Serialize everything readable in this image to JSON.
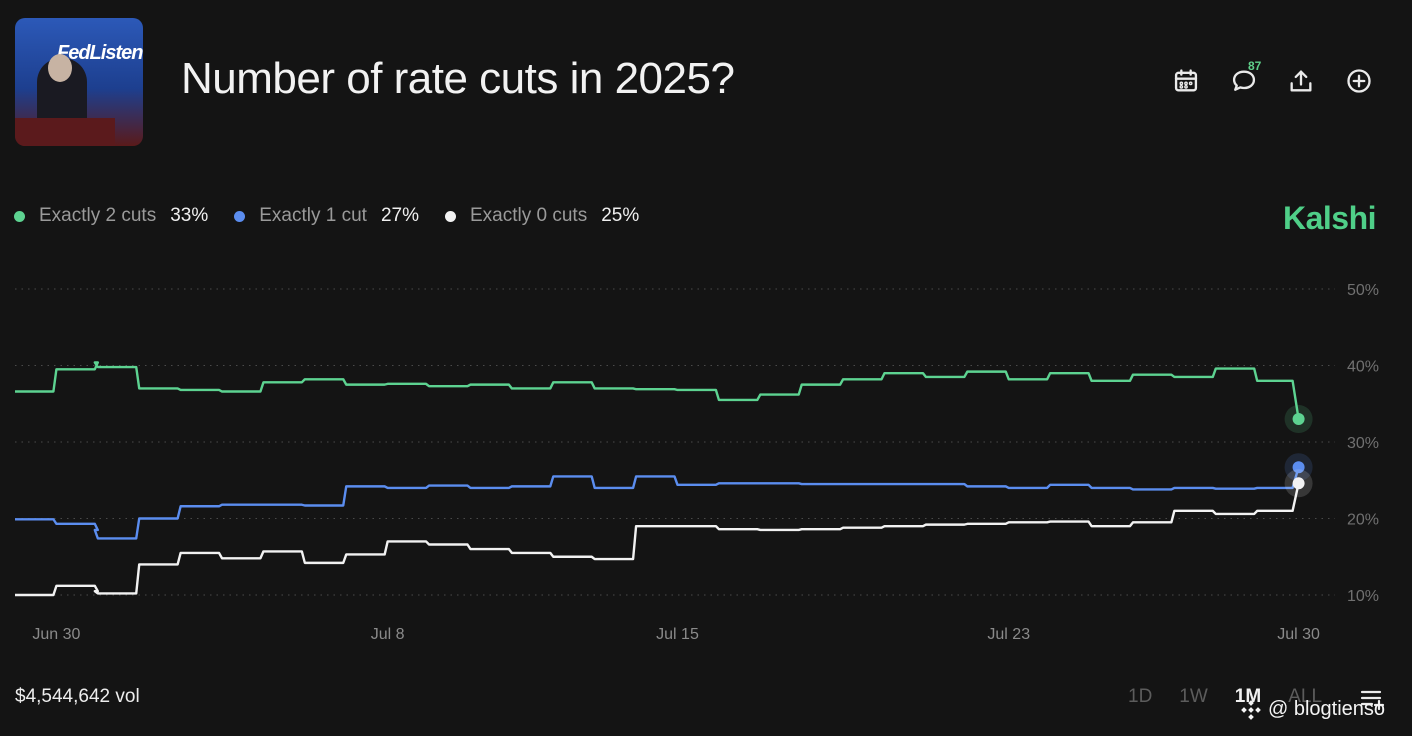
{
  "header": {
    "title": "Number of rate cuts in 2025?",
    "thumbnail_text": "FedListen",
    "comment_count": "87",
    "tools": [
      "calendar-icon",
      "comment-icon",
      "share-icon",
      "add-icon"
    ]
  },
  "legend": [
    {
      "name": "Exactly 2 cuts",
      "value": "33%",
      "color": "#5dd391"
    },
    {
      "name": "Exactly 1 cut",
      "value": "27%",
      "color": "#5b8def"
    },
    {
      "name": "Exactly 0 cuts",
      "value": "25%",
      "color": "#f2f2f2"
    }
  ],
  "brand": "Kalshi",
  "chart_data": {
    "type": "line",
    "x_tick_labels": [
      "Jun 30",
      "Jul 8",
      "Jul 15",
      "Jul 23",
      "Jul 30"
    ],
    "y_tick_labels": [
      "50%",
      "40%",
      "30%",
      "20%",
      "10%"
    ],
    "ylim": [
      10,
      50
    ],
    "xlim": [
      "Jun 29",
      "Jul 31"
    ],
    "grid": true,
    "y_axis_side": "right",
    "legend_position": "top-left",
    "series": [
      {
        "name": "Exactly 2 cuts",
        "color": "#5dd391",
        "points": [
          [
            "Jun 29",
            36.6
          ],
          [
            "Jun 30",
            39.5
          ],
          [
            "Jun 31",
            40.4
          ],
          [
            "Jul 1",
            39.8
          ],
          [
            "Jul 2",
            37.0
          ],
          [
            "Jul 3",
            36.8
          ],
          [
            "Jul 4",
            36.6
          ],
          [
            "Jul 5",
            37.8
          ],
          [
            "Jul 6",
            38.2
          ],
          [
            "Jul 7",
            37.5
          ],
          [
            "Jul 8",
            37.6
          ],
          [
            "Jul 9",
            37.3
          ],
          [
            "Jul 10",
            37.5
          ],
          [
            "Jul 11",
            37.0
          ],
          [
            "Jul 12",
            37.8
          ],
          [
            "Jul 13",
            37.0
          ],
          [
            "Jul 14",
            36.9
          ],
          [
            "Jul 15",
            36.8
          ],
          [
            "Jul 16",
            35.5
          ],
          [
            "Jul 17",
            36.2
          ],
          [
            "Jul 18",
            37.5
          ],
          [
            "Jul 19",
            38.2
          ],
          [
            "Jul 20",
            39.0
          ],
          [
            "Jul 21",
            38.5
          ],
          [
            "Jul 22",
            39.2
          ],
          [
            "Jul 23",
            38.2
          ],
          [
            "Jul 24",
            39.0
          ],
          [
            "Jul 25",
            38.0
          ],
          [
            "Jul 26",
            38.8
          ],
          [
            "Jul 27",
            38.5
          ],
          [
            "Jul 28",
            39.6
          ],
          [
            "Jul 29",
            38.0
          ],
          [
            "Jul 30",
            33.0
          ]
        ]
      },
      {
        "name": "Exactly 1 cut",
        "color": "#5b8def",
        "points": [
          [
            "Jun 29",
            19.9
          ],
          [
            "Jun 30",
            19.3
          ],
          [
            "Jun 31",
            18.5
          ],
          [
            "Jul 1",
            17.4
          ],
          [
            "Jul 2",
            20.0
          ],
          [
            "Jul 3",
            21.6
          ],
          [
            "Jul 4",
            21.8
          ],
          [
            "Jul 5",
            21.8
          ],
          [
            "Jul 6",
            21.7
          ],
          [
            "Jul 7",
            24.2
          ],
          [
            "Jul 8",
            24.0
          ],
          [
            "Jul 9",
            24.3
          ],
          [
            "Jul 10",
            24.0
          ],
          [
            "Jul 11",
            24.2
          ],
          [
            "Jul 12",
            25.5
          ],
          [
            "Jul 13",
            24.0
          ],
          [
            "Jul 14",
            25.5
          ],
          [
            "Jul 15",
            24.4
          ],
          [
            "Jul 16",
            24.6
          ],
          [
            "Jul 17",
            24.6
          ],
          [
            "Jul 18",
            24.5
          ],
          [
            "Jul 19",
            24.5
          ],
          [
            "Jul 20",
            24.5
          ],
          [
            "Jul 21",
            24.5
          ],
          [
            "Jul 22",
            24.2
          ],
          [
            "Jul 23",
            24.0
          ],
          [
            "Jul 24",
            24.4
          ],
          [
            "Jul 25",
            24.0
          ],
          [
            "Jul 26",
            23.8
          ],
          [
            "Jul 27",
            24.0
          ],
          [
            "Jul 28",
            23.9
          ],
          [
            "Jul 29",
            24.0
          ],
          [
            "Jul 30",
            26.7
          ]
        ]
      },
      {
        "name": "Exactly 0 cuts",
        "color": "#f2f2f2",
        "points": [
          [
            "Jun 29",
            10.0
          ],
          [
            "Jun 30",
            11.2
          ],
          [
            "Jun 31",
            10.5
          ],
          [
            "Jul 1",
            10.2
          ],
          [
            "Jul 2",
            14.0
          ],
          [
            "Jul 3",
            15.5
          ],
          [
            "Jul 4",
            14.8
          ],
          [
            "Jul 5",
            15.7
          ],
          [
            "Jul 6",
            14.2
          ],
          [
            "Jul 7",
            15.3
          ],
          [
            "Jul 8",
            17.0
          ],
          [
            "Jul 9",
            16.6
          ],
          [
            "Jul 10",
            16.0
          ],
          [
            "Jul 11",
            15.5
          ],
          [
            "Jul 12",
            15.0
          ],
          [
            "Jul 13",
            14.7
          ],
          [
            "Jul 14",
            19.0
          ],
          [
            "Jul 15",
            19.0
          ],
          [
            "Jul 16",
            18.6
          ],
          [
            "Jul 17",
            18.5
          ],
          [
            "Jul 18",
            18.6
          ],
          [
            "Jul 19",
            18.8
          ],
          [
            "Jul 20",
            19.0
          ],
          [
            "Jul 21",
            19.2
          ],
          [
            "Jul 22",
            19.3
          ],
          [
            "Jul 23",
            19.5
          ],
          [
            "Jul 24",
            19.6
          ],
          [
            "Jul 25",
            19.0
          ],
          [
            "Jul 26",
            19.5
          ],
          [
            "Jul 27",
            21.0
          ],
          [
            "Jul 28",
            20.6
          ],
          [
            "Jul 29",
            21.0
          ],
          [
            "Jul 30",
            24.6
          ]
        ]
      }
    ]
  },
  "footer": {
    "volume": "$4,544,642 vol",
    "ranges": [
      "1D",
      "1W",
      "1M",
      "ALL"
    ],
    "active_range": "1M"
  },
  "watermark": "@ blogtienso"
}
